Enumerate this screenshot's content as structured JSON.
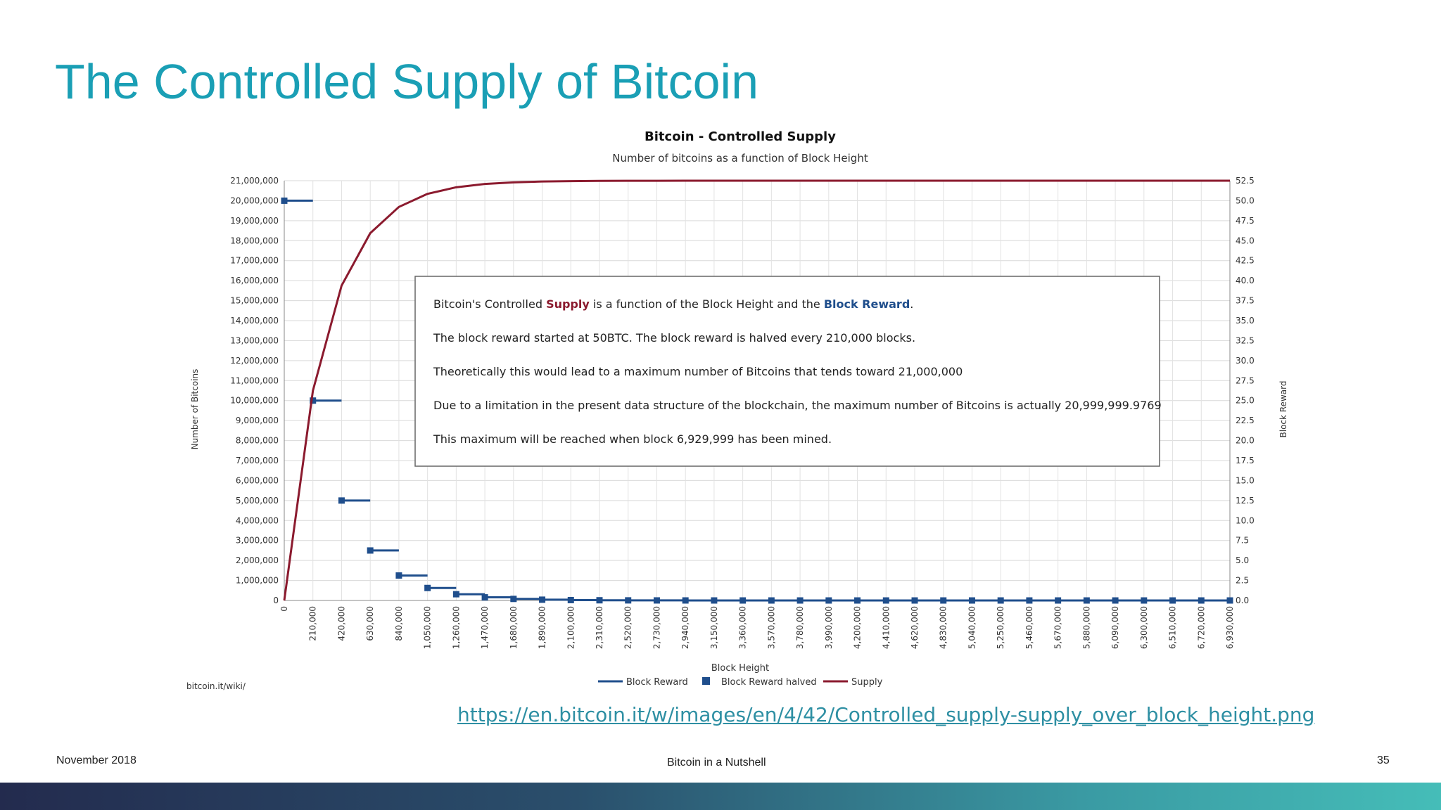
{
  "slide": {
    "title": "The Controlled Supply of Bitcoin",
    "source_url": "https://en.bitcoin.it/w/images/en/4/42/Controlled_supply-supply_over_block_height.png",
    "footer_date": "November 2018",
    "footer_center": "Bitcoin in a Nutshell",
    "page_number": "35"
  },
  "colors": {
    "title": "#1a9fb5",
    "supply": "#8b1a2e",
    "block_reward": "#1f4e8c",
    "link": "#2e8fa3"
  },
  "chart_data": {
    "type": "line",
    "title": "Bitcoin - Controlled Supply",
    "subtitle": "Number of bitcoins as a function of Block Height",
    "xlabel": "Block Height",
    "ylabel": "Number of Bitcoins",
    "y2label": "Block Reward",
    "credit": "bitcoin.it/wiki/",
    "xlim": [
      0,
      6930000
    ],
    "ylim": [
      0,
      21000000
    ],
    "y2lim": [
      0,
      52.5
    ],
    "x_ticks": [
      "0",
      "210,000",
      "420,000",
      "630,000",
      "840,000",
      "1,050,000",
      "1,260,000",
      "1,470,000",
      "1,680,000",
      "1,890,000",
      "2,100,000",
      "2,310,000",
      "2,520,000",
      "2,730,000",
      "2,940,000",
      "3,150,000",
      "3,360,000",
      "3,570,000",
      "3,780,000",
      "3,990,000",
      "4,200,000",
      "4,410,000",
      "4,620,000",
      "4,830,000",
      "5,040,000",
      "5,250,000",
      "5,460,000",
      "5,670,000",
      "5,880,000",
      "6,090,000",
      "6,300,000",
      "6,510,000",
      "6,720,000",
      "6,930,000"
    ],
    "y_ticks": [
      "0",
      "1,000,000",
      "2,000,000",
      "3,000,000",
      "4,000,000",
      "5,000,000",
      "6,000,000",
      "7,000,000",
      "8,000,000",
      "9,000,000",
      "10,000,000",
      "11,000,000",
      "12,000,000",
      "13,000,000",
      "14,000,000",
      "15,000,000",
      "16,000,000",
      "17,000,000",
      "18,000,000",
      "19,000,000",
      "20,000,000",
      "21,000,000"
    ],
    "y2_ticks": [
      "0.0",
      "2.5",
      "5.0",
      "7.5",
      "10.0",
      "12.5",
      "15.0",
      "17.5",
      "20.0",
      "22.5",
      "25.0",
      "27.5",
      "30.0",
      "32.5",
      "35.0",
      "37.5",
      "40.0",
      "42.5",
      "45.0",
      "47.5",
      "50.0",
      "52.5"
    ],
    "series": [
      {
        "name": "Block Reward",
        "axis": "right",
        "x": [
          0,
          210000,
          420000,
          630000,
          840000,
          1050000,
          1260000,
          1470000,
          1680000,
          1890000,
          2100000,
          2310000,
          2520000,
          2730000,
          2940000,
          3150000,
          3360000,
          3570000,
          3780000,
          3990000,
          4200000,
          4410000,
          4620000,
          4830000,
          5040000,
          5250000,
          5460000,
          5670000,
          5880000,
          6090000,
          6300000,
          6510000,
          6720000,
          6930000
        ],
        "values": [
          50,
          25,
          12.5,
          6.25,
          3.125,
          1.5625,
          0.78125,
          0.390625,
          0.1953125,
          0.09765625,
          0.048828125,
          0.0244140625,
          0.01220703125,
          0.006103515625,
          0.0030517578125,
          0.00152587890625,
          0.000762939453125,
          0.0003814697265625,
          0.00019073486328125,
          9.5367431640625e-05,
          4.76837158203125e-05,
          2.384185791015625e-05,
          1.1920928955078125e-05,
          5.9604644775390625e-06,
          2.9802322387695312e-06,
          1.4901161193847656e-06,
          7.450580596923828e-07,
          3.725290298461914e-07,
          1.862645149230957e-07,
          9.313225746154785e-08,
          4.6566128730773926e-08,
          2.3283064365386963e-08,
          1.1641532182693481e-08,
          0
        ]
      },
      {
        "name": "Block Reward halved",
        "axis": "right",
        "x": [
          0,
          210000,
          420000,
          630000,
          840000,
          1050000,
          1260000,
          1470000,
          1680000,
          1890000,
          2100000,
          2310000,
          2520000,
          2730000,
          2940000,
          3150000,
          3360000,
          3570000,
          3780000,
          3990000,
          4200000,
          4410000,
          4620000,
          4830000,
          5040000,
          5250000,
          5460000,
          5670000,
          5880000,
          6090000,
          6300000,
          6510000,
          6720000,
          6930000
        ],
        "values": [
          50,
          25,
          12.5,
          6.25,
          3.125,
          1.5625,
          0.78125,
          0.390625,
          0.1953125,
          0.09765625,
          0.048828125,
          0.0244140625,
          0.01220703125,
          0.006103515625,
          0.0030517578125,
          0.00152587890625,
          0.000762939453125,
          0.0003814697265625,
          0.00019073486328125,
          9.5367431640625e-05,
          4.76837158203125e-05,
          2.384185791015625e-05,
          1.1920928955078125e-05,
          5.9604644775390625e-06,
          2.9802322387695312e-06,
          1.4901161193847656e-06,
          7.450580596923828e-07,
          3.725290298461914e-07,
          1.862645149230957e-07,
          9.313225746154785e-08,
          4.6566128730773926e-08,
          2.3283064365386963e-08,
          1.1641532182693481e-08,
          0
        ]
      },
      {
        "name": "Supply",
        "axis": "left",
        "x": [
          0,
          210000,
          420000,
          630000,
          840000,
          1050000,
          1260000,
          1470000,
          1680000,
          1890000,
          2100000,
          2310000,
          2520000,
          2730000,
          2940000,
          3150000,
          3360000,
          3570000,
          3780000,
          3990000,
          4200000,
          4410000,
          4620000,
          4830000,
          5040000,
          5250000,
          5460000,
          5670000,
          5880000,
          6090000,
          6300000,
          6510000,
          6720000,
          6930000
        ],
        "values": [
          0,
          10500000,
          15750000,
          18375000,
          19687500,
          20343750,
          20671875,
          20835937.5,
          20917968.75,
          20958984.38,
          20979492.19,
          20989746.09,
          20994873.05,
          20997436.52,
          20998718.26,
          20999359.13,
          20999679.57,
          20999839.78,
          20999919.89,
          20999959.95,
          20999979.97,
          20999989.99,
          20999994.99,
          20999997.5,
          20999998.75,
          20999999.37,
          20999999.69,
          20999999.84,
          20999999.92,
          20999999.96,
          20999999.98,
          20999999.99,
          20999999.99,
          20999999.98
        ]
      }
    ],
    "annotation": {
      "line1_prefix": "Bitcoin's Controlled ",
      "line1_supply": "Supply",
      "line1_middle": " is a function of the Block Height and the ",
      "line1_reward": "Block Reward",
      "line1_suffix": ".",
      "line2": "The block reward started at 50BTC.  The block reward is halved every 210,000 blocks.",
      "line3": "Theoretically this would lead to a maximum number of Bitcoins that tends toward 21,000,000",
      "line4": "Due to a limitation in the present data structure of the blockchain, the maximum number of Bitcoins is actually 20,999,999.9769",
      "line5": "This maximum will be reached when block 6,929,999 has been mined."
    },
    "grid": true,
    "legend": "bottom"
  }
}
